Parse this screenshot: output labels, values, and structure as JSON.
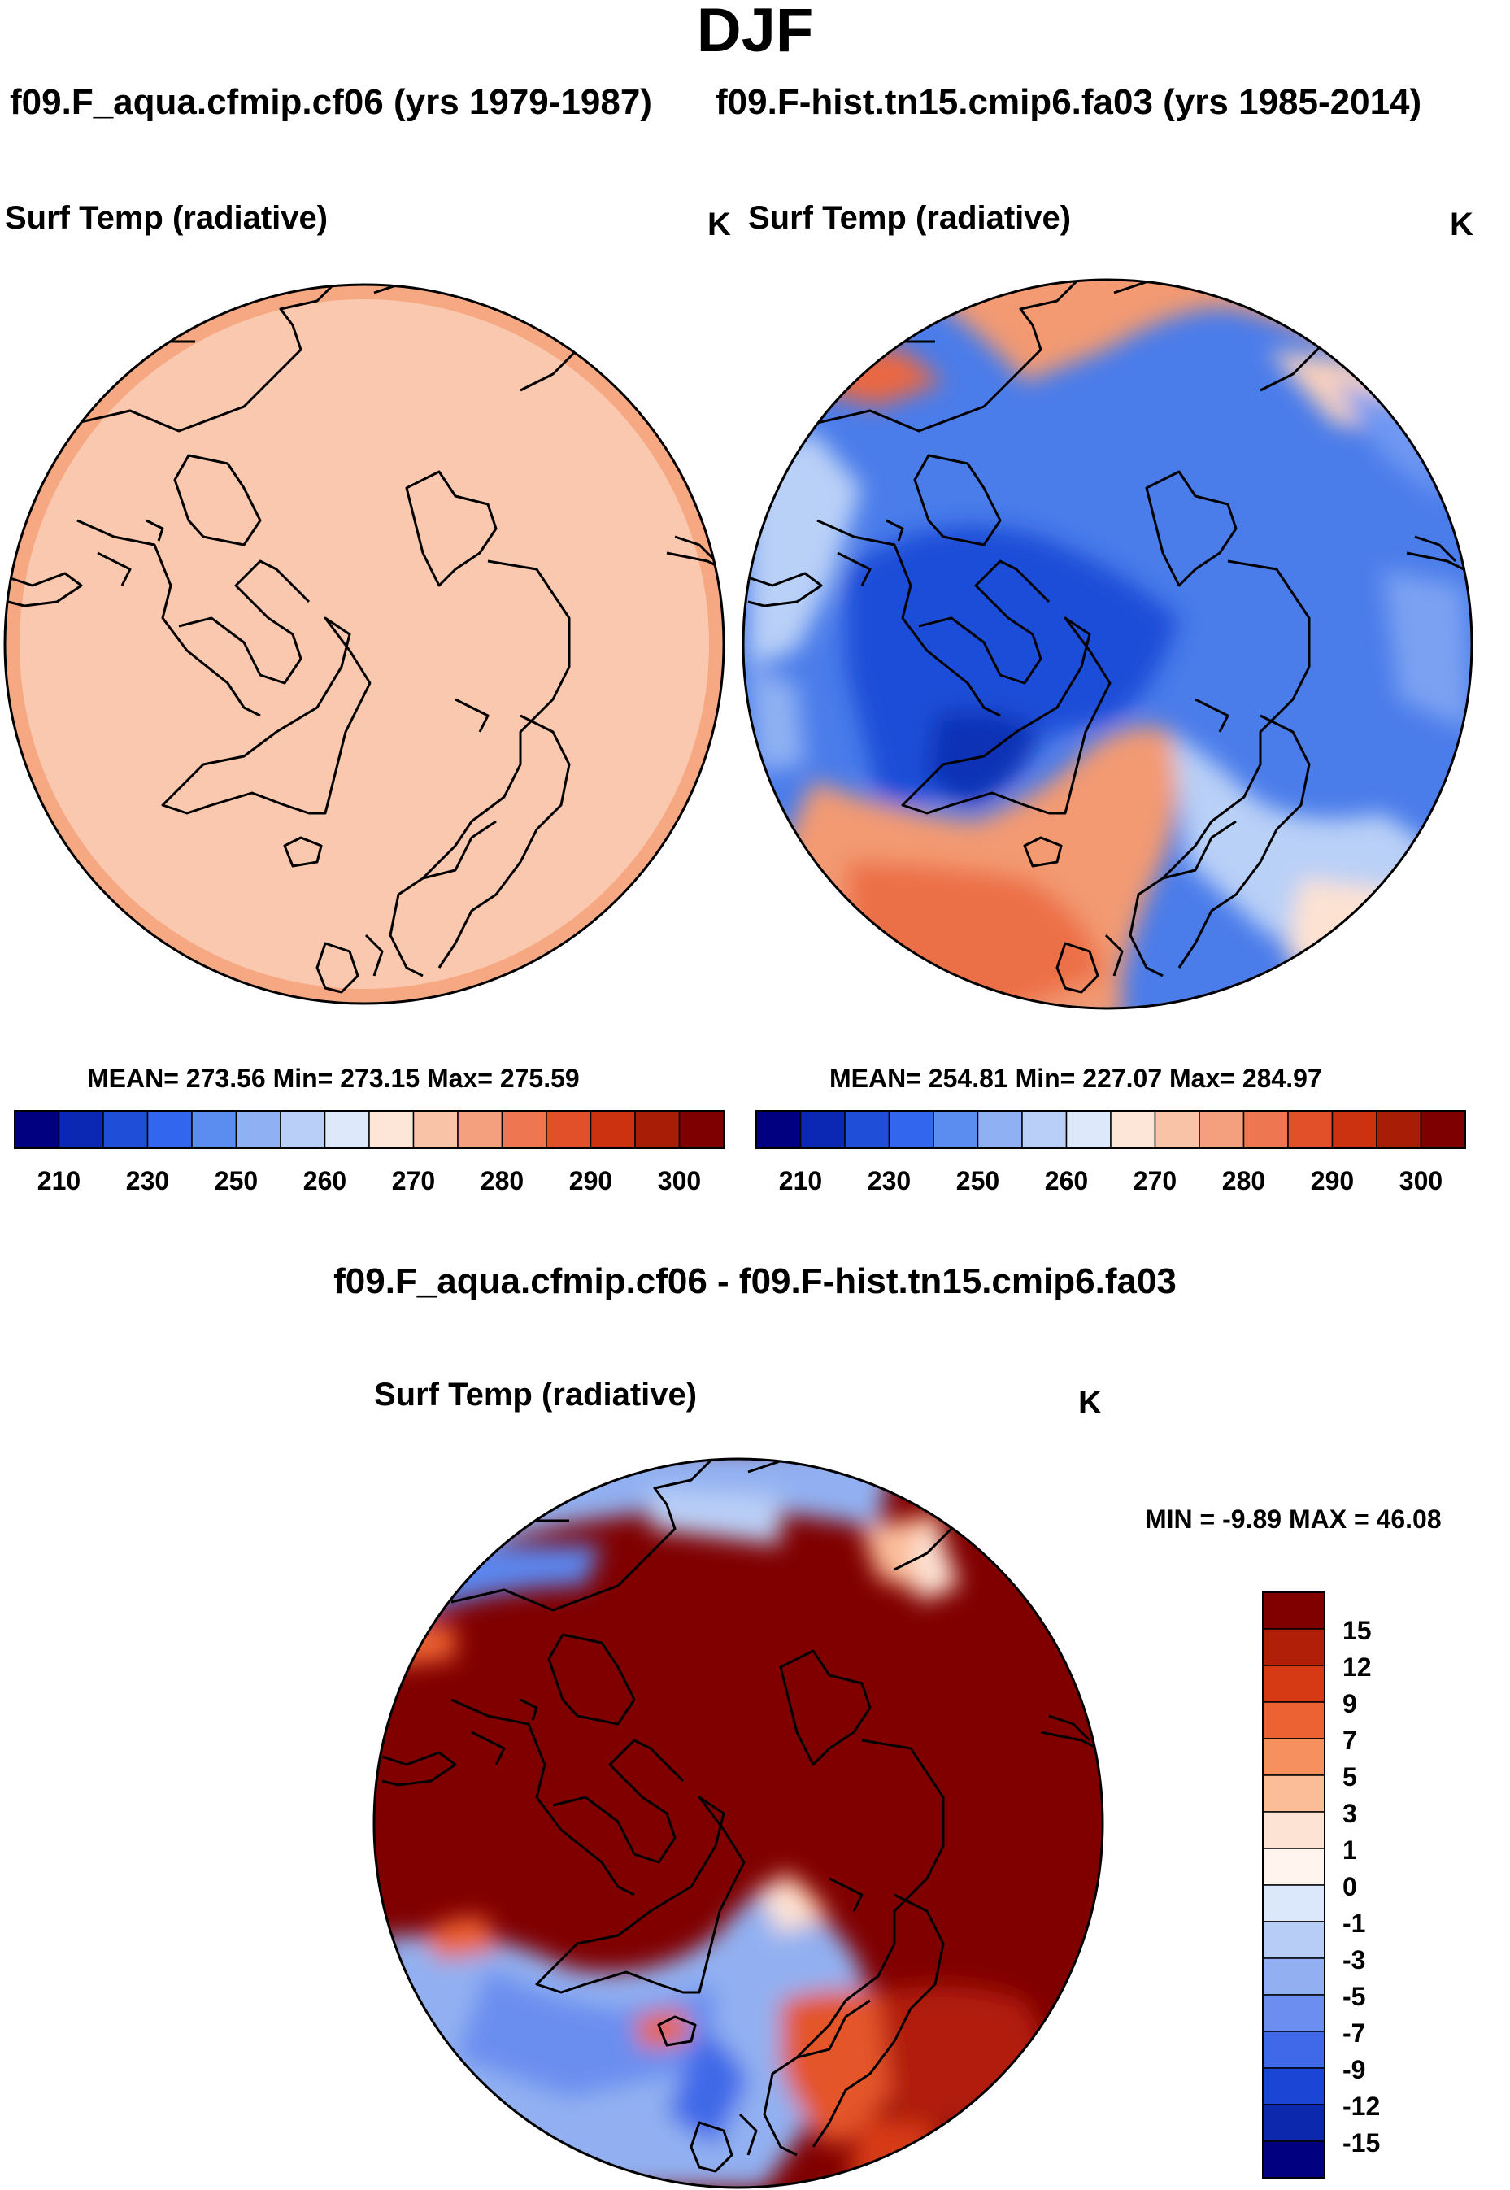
{
  "title": "DJF",
  "panels": [
    {
      "subtitle": "f09.F_aqua.cfmip.cf06 (yrs 1979-1987)",
      "variable": "Surf Temp (radiative)",
      "units": "K",
      "stats": "MEAN= 273.56  Min= 273.15  Max= 275.59"
    },
    {
      "subtitle": "f09.F-hist.tn15.cmip6.fa03 (yrs 1985-2014)",
      "variable": "Surf Temp (radiative)",
      "units": "K",
      "stats": "MEAN= 254.81  Min= 227.07  Max= 284.97"
    }
  ],
  "diff_panel": {
    "title": "f09.F_aqua.cfmip.cf06 - f09.F-hist.tn15.cmip6.fa03",
    "variable": "Surf Temp (radiative)",
    "units": "K",
    "stats": "MIN =  -9.89 MAX =  46.08"
  },
  "chart_data": [
    {
      "type": "heatmap",
      "projection": "north polar stereographic",
      "title": "f09.F_aqua.cfmip.cf06 (yrs 1979-1987)",
      "variable": "Surf Temp (radiative)",
      "units": "K",
      "mean": 273.56,
      "min": 273.15,
      "max": 275.59,
      "colorbar_ticks": [
        "210",
        "230",
        "250",
        "260",
        "270",
        "280",
        "290",
        "300"
      ],
      "colorbar_colors": [
        "#000080",
        "#0a28b4",
        "#1f4ed8",
        "#3366ee",
        "#5b8cf0",
        "#8fb0f3",
        "#b9cff7",
        "#dde9fb",
        "#fde6d8",
        "#f9c3a8",
        "#f4a07e",
        "#ee7650",
        "#e2502a",
        "#cc3210",
        "#a81d06",
        "#7f0000"
      ]
    },
    {
      "type": "heatmap",
      "projection": "north polar stereographic",
      "title": "f09.F-hist.tn15.cmip6.fa03 (yrs 1985-2014)",
      "variable": "Surf Temp (radiative)",
      "units": "K",
      "mean": 254.81,
      "min": 227.07,
      "max": 284.97,
      "colorbar_ticks": [
        "210",
        "230",
        "250",
        "260",
        "270",
        "280",
        "290",
        "300"
      ],
      "colorbar_colors": [
        "#000080",
        "#0a28b4",
        "#1f4ed8",
        "#3366ee",
        "#5b8cf0",
        "#8fb0f3",
        "#b9cff7",
        "#dde9fb",
        "#fde6d8",
        "#f9c3a8",
        "#f4a07e",
        "#ee7650",
        "#e2502a",
        "#cc3210",
        "#a81d06",
        "#7f0000"
      ]
    },
    {
      "type": "heatmap",
      "projection": "north polar stereographic",
      "title": "f09.F_aqua.cfmip.cf06 - f09.F-hist.tn15.cmip6.fa03",
      "variable": "Surf Temp (radiative)",
      "units": "K",
      "min": -9.89,
      "max": 46.08,
      "colorbar_ticks": [
        "15",
        "12",
        "9",
        "7",
        "5",
        "3",
        "1",
        "0",
        "-1",
        "-3",
        "-5",
        "-7",
        "-9",
        "-12",
        "-15"
      ],
      "colorbar_colors": [
        "#800000",
        "#b11f08",
        "#d63a14",
        "#ec6233",
        "#f6915f",
        "#fbbc98",
        "#fde3d4",
        "#fff5ee",
        "#dbe8fb",
        "#b7cdf6",
        "#92b0f1",
        "#6b8ef0",
        "#3f69e8",
        "#1b45d4",
        "#0c28ad",
        "#000080"
      ]
    }
  ]
}
